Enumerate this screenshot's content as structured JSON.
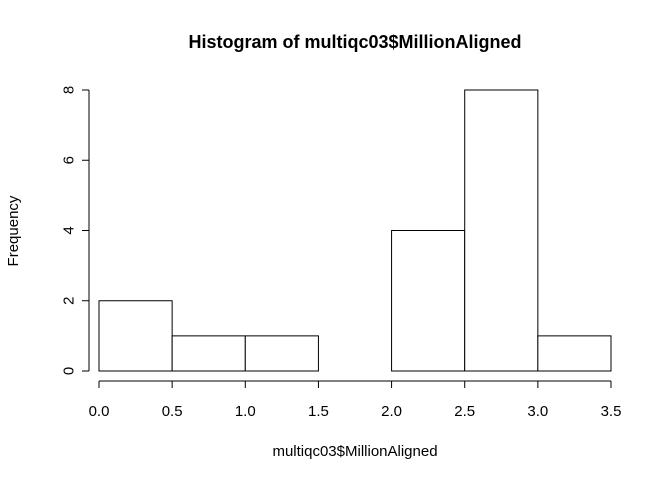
{
  "chart_data": {
    "type": "bar",
    "subtype": "histogram",
    "title": "Histogram of multiqc03$MillionAligned",
    "xlabel": "multiqc03$MillionAligned",
    "ylabel": "Frequency",
    "bins": [
      {
        "from": 0.0,
        "to": 0.5,
        "count": 2
      },
      {
        "from": 0.5,
        "to": 1.0,
        "count": 1
      },
      {
        "from": 1.0,
        "to": 1.5,
        "count": 1
      },
      {
        "from": 1.5,
        "to": 2.0,
        "count": 0
      },
      {
        "from": 2.0,
        "to": 2.5,
        "count": 4
      },
      {
        "from": 2.5,
        "to": 3.0,
        "count": 8
      },
      {
        "from": 3.0,
        "to": 3.5,
        "count": 1
      }
    ],
    "xlim": [
      0.0,
      3.5
    ],
    "ylim": [
      0,
      8
    ],
    "x_ticks": [
      "0.0",
      "0.5",
      "1.0",
      "1.5",
      "2.0",
      "2.5",
      "3.0",
      "3.5"
    ],
    "y_ticks": [
      "0",
      "2",
      "4",
      "6",
      "8"
    ],
    "grid": false,
    "bar_fill": "#ffffff",
    "bar_stroke": "#000000"
  }
}
